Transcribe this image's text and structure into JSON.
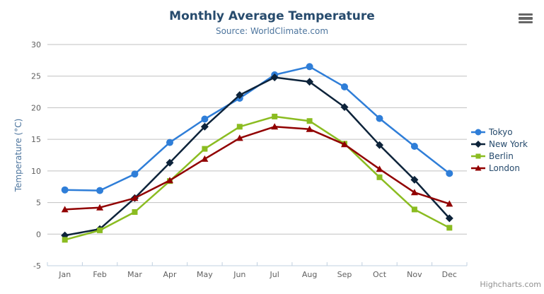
{
  "chart_data": {
    "type": "line",
    "title": "Monthly Average Temperature",
    "subtitle": "Source: WorldClimate.com",
    "categories": [
      "Jan",
      "Feb",
      "Mar",
      "Apr",
      "May",
      "Jun",
      "Jul",
      "Aug",
      "Sep",
      "Oct",
      "Nov",
      "Dec"
    ],
    "series": [
      {
        "name": "Tokyo",
        "color": "#2f7ed8",
        "marker": "circle",
        "values": [
          7.0,
          6.9,
          9.5,
          14.5,
          18.2,
          21.5,
          25.2,
          26.5,
          23.3,
          18.3,
          13.9,
          9.6
        ]
      },
      {
        "name": "New York",
        "color": "#0d233a",
        "marker": "diamond",
        "values": [
          -0.2,
          0.8,
          5.7,
          11.3,
          17.0,
          22.0,
          24.8,
          24.1,
          20.1,
          14.1,
          8.6,
          2.5
        ]
      },
      {
        "name": "Berlin",
        "color": "#8bbc21",
        "marker": "square",
        "values": [
          -0.9,
          0.6,
          3.5,
          8.4,
          13.5,
          17.0,
          18.6,
          17.9,
          14.3,
          9.0,
          3.9,
          1.0
        ]
      },
      {
        "name": "London",
        "color": "#910000",
        "marker": "triangle",
        "values": [
          3.9,
          4.2,
          5.7,
          8.5,
          11.9,
          15.2,
          17.0,
          16.6,
          14.2,
          10.3,
          6.6,
          4.8
        ]
      }
    ],
    "xlabel": "",
    "ylabel": "Temperature (°C)",
    "ylim": [
      -5,
      30
    ],
    "yticks": [
      -5,
      0,
      5,
      10,
      15,
      20,
      25,
      30
    ],
    "grid": true,
    "legend_position": "right"
  },
  "credits": {
    "label": "Highcharts.com"
  },
  "export_menu": {
    "icon": "hamburger-icon"
  },
  "colors": {
    "background": "#ffffff",
    "grid": "#c0c0c0",
    "axis_line": "#c0d0e0",
    "tick": "#c0d0e0",
    "tick_label": "#606060",
    "title": "#274b6d",
    "subtitle": "#4d759e",
    "axis_title": "#4d759e",
    "legend_text": "#274b6d",
    "credits": "#909090",
    "menu_icon": "#666666"
  }
}
